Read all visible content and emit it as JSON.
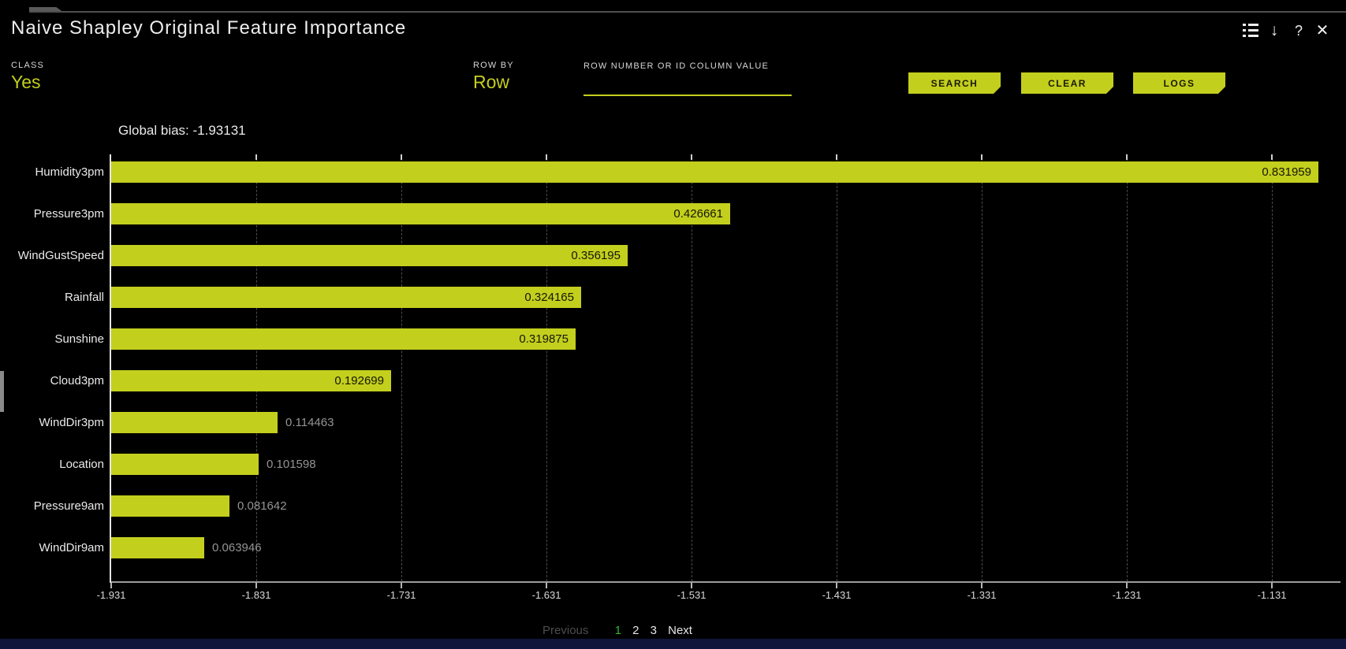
{
  "window": {
    "title": "Naive Shapley Original Feature Importance"
  },
  "header_icons": {
    "download_glyph": "↓",
    "help_glyph": "?",
    "close_glyph": "✕"
  },
  "controls": {
    "class_label": "CLASS",
    "class_value": "Yes",
    "row_by_label": "ROW BY",
    "row_by_value": "Row",
    "row_input_label": "ROW NUMBER OR ID COLUMN VALUE",
    "row_input_value": "",
    "buttons": [
      {
        "label": "SEARCH"
      },
      {
        "label": "CLEAR"
      },
      {
        "label": "LOGS"
      }
    ]
  },
  "chart_data": {
    "type": "bar",
    "orientation": "horizontal",
    "title": "Global bias: -1.93131",
    "global_bias": -1.93131,
    "categories": [
      "Humidity3pm",
      "Pressure3pm",
      "WindGustSpeed",
      "Rainfall",
      "Sunshine",
      "Cloud3pm",
      "WindDir3pm",
      "Location",
      "Pressure9am",
      "WindDir9am"
    ],
    "values": [
      0.831959,
      0.426661,
      0.356195,
      0.324165,
      0.319875,
      0.192699,
      0.114463,
      0.101598,
      0.081642,
      0.063946
    ],
    "value_labels": [
      "0.831959",
      "0.426661",
      "0.356195",
      "0.324165",
      "0.319875",
      "0.192699",
      "0.114463",
      "0.101598",
      "0.081642",
      "0.063946"
    ],
    "x_ticks": [
      -1.931,
      -1.831,
      -1.731,
      -1.631,
      -1.531,
      -1.431,
      -1.331,
      -1.231,
      -1.131
    ],
    "x_tick_labels": [
      "-1.931",
      "-1.831",
      "-1.731",
      "-1.631",
      "-1.531",
      "-1.431",
      "-1.331",
      "-1.231",
      "-1.131"
    ],
    "xlim": [
      -1.931,
      -1.081
    ],
    "grid": "vertical-dashed",
    "bar_color": "#c3cf1d",
    "value_inside_color": "#161604",
    "value_outside_color": "#949494"
  },
  "pagination": {
    "previous_label": "Previous",
    "pages": [
      "1",
      "2",
      "3"
    ],
    "active_page": "1",
    "next_label": "Next"
  },
  "colors": {
    "accent": "#c3cf1d",
    "page_active": "#35b535",
    "background": "#000000"
  }
}
